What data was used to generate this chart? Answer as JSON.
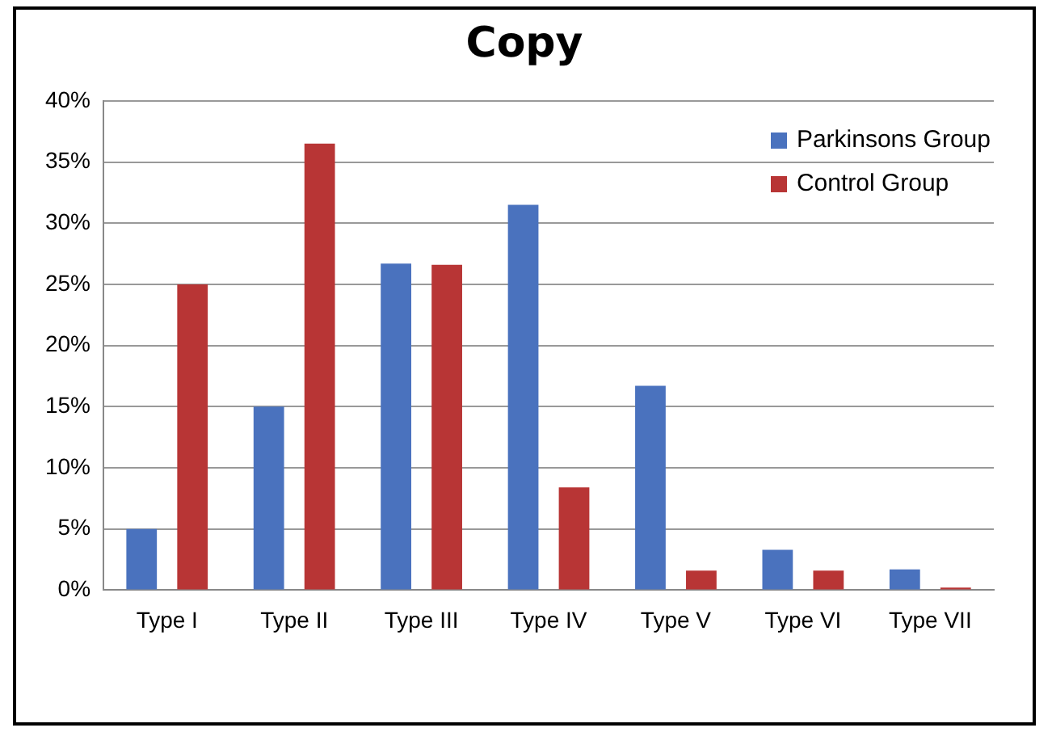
{
  "chart_data": {
    "type": "bar",
    "title": "Copy",
    "categories": [
      "Type I",
      "Type II",
      "Type III",
      "Type IV",
      "Type V",
      "Type VI",
      "Type VII"
    ],
    "series": [
      {
        "name": "Parkinsons Group",
        "color": "#4a72be",
        "values": [
          5,
          15,
          26.7,
          31.5,
          16.7,
          3.3,
          1.7
        ]
      },
      {
        "name": "Control Group",
        "color": "#b83535",
        "values": [
          25,
          36.5,
          26.6,
          8.4,
          1.6,
          1.6,
          0.2
        ]
      }
    ],
    "ylim": [
      0,
      40
    ],
    "yticks": [
      {
        "value": 0,
        "label": "0%"
      },
      {
        "value": 5,
        "label": "5%"
      },
      {
        "value": 10,
        "label": "10%"
      },
      {
        "value": 15,
        "label": "15%"
      },
      {
        "value": 20,
        "label": "20%"
      },
      {
        "value": 25,
        "label": "25%"
      },
      {
        "value": 30,
        "label": "30%"
      },
      {
        "value": 35,
        "label": "35%"
      },
      {
        "value": 40,
        "label": "40%"
      }
    ],
    "grid": "y",
    "legend": "top right"
  }
}
